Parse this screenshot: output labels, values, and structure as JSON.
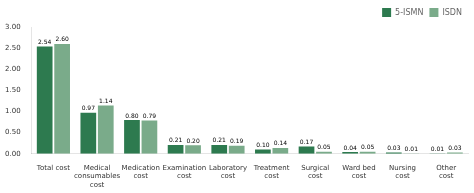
{
  "chart_data": {
    "type": "bar",
    "categories": [
      "Total cost",
      "Medical\nconsumables\ncost",
      "Medication\ncost",
      "Examination\ncost",
      "Laboratory\ncost",
      "Treatment\ncost",
      "Surgical\ncost",
      "Ward bed\ncost",
      "Nursing\ncost",
      "Other\ncost"
    ],
    "series": [
      {
        "name": "5-ISMN",
        "color": "#2d7a4f",
        "values": [
          2.54,
          0.97,
          0.8,
          0.21,
          0.21,
          0.1,
          0.17,
          0.04,
          0.03,
          0.01
        ],
        "value_labels": [
          "2.54",
          "0.97",
          "0.80",
          "0.21",
          "0.21",
          "0.10",
          "0.17",
          "0.04",
          "0.03",
          "0.01"
        ]
      },
      {
        "name": "ISDN",
        "color": "#7aab8a",
        "values": [
          2.6,
          1.14,
          0.79,
          0.2,
          0.19,
          0.14,
          0.05,
          0.05,
          0.01,
          0.03
        ],
        "value_labels": [
          "2.60",
          "1.14",
          "0.79",
          "0.20",
          "0.19",
          "0.14",
          "0.05",
          "0.05",
          "0.01",
          "0.03"
        ]
      }
    ],
    "ylim": [
      0,
      3.0
    ],
    "yticks": [
      {
        "value": 0,
        "label": "0.00"
      },
      {
        "value": 0.5,
        "label": "0.50"
      },
      {
        "value": 1.0,
        "label": "1.00"
      },
      {
        "value": 1.5,
        "label": "1.50"
      },
      {
        "value": 2.0,
        "label": "2.00"
      },
      {
        "value": 2.5,
        "label": "2.50"
      },
      {
        "value": 3.0,
        "label": "3.00"
      }
    ],
    "grid": false,
    "legend": "upper right",
    "data_labels": true
  }
}
